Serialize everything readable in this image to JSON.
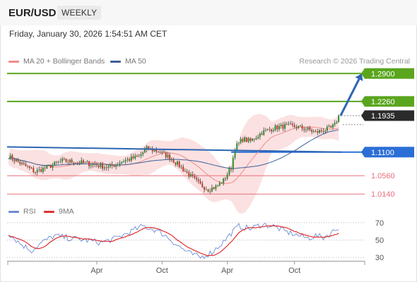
{
  "header": {
    "symbol": "EUR/USD",
    "timeframe": "WEEKLY"
  },
  "datetime": "Friday, January 30, 2026 1:54:51 AM CET",
  "legend": {
    "ma20": "MA 20 + Bollinger Bands",
    "ma50": "MA 50",
    "copyright": "Research © 2026 Trading Central",
    "rsi": "RSI",
    "rsi_ma": "9MA"
  },
  "colors": {
    "resistance": "#5aa51e",
    "support": "#e8707a",
    "pivot": "#2b6fd6",
    "current": "#2b2b2b",
    "ma20": "#f28b8b",
    "ma50": "#3d5f9a",
    "bands": "#fbe1e1",
    "up": "#2e8b2e",
    "down": "#c0392b",
    "rsi": "#6b8cd6",
    "rsi_ma": "#e03030",
    "arrow": "#2d65b4"
  },
  "chart_data": [
    {
      "type": "candlestick",
      "ylim": [
        0.995,
        1.305
      ],
      "x_ticks": [
        "Apr",
        "Oct",
        "Apr",
        "Oct"
      ],
      "levels": [
        {
          "label": "1.2900",
          "value": 1.29,
          "kind": "resistance"
        },
        {
          "label": "1.2260",
          "value": 1.226,
          "kind": "resistance"
        },
        {
          "label": "1.1935",
          "value": 1.1935,
          "kind": "current"
        },
        {
          "label": "1.1100",
          "value": 1.11,
          "kind": "pivot"
        },
        {
          "label": "1.0560",
          "value": 1.056,
          "kind": "support"
        },
        {
          "label": "1.0140",
          "value": 1.014,
          "kind": "support"
        }
      ],
      "close_anchors": [
        [
          0,
          1.1
        ],
        [
          8,
          1.08
        ],
        [
          14,
          1.065
        ],
        [
          20,
          1.075
        ],
        [
          28,
          1.09
        ],
        [
          36,
          1.087
        ],
        [
          44,
          1.082
        ],
        [
          52,
          1.075
        ],
        [
          60,
          1.09
        ],
        [
          68,
          1.1
        ],
        [
          72,
          1.118
        ],
        [
          78,
          1.112
        ],
        [
          84,
          1.098
        ],
        [
          90,
          1.075
        ],
        [
          96,
          1.05
        ],
        [
          100,
          1.035
        ],
        [
          104,
          1.025
        ],
        [
          108,
          1.03
        ],
        [
          112,
          1.045
        ],
        [
          116,
          1.075
        ],
        [
          118,
          1.12
        ],
        [
          122,
          1.14
        ],
        [
          126,
          1.135
        ],
        [
          132,
          1.155
        ],
        [
          138,
          1.165
        ],
        [
          144,
          1.17
        ],
        [
          150,
          1.168
        ],
        [
          156,
          1.162
        ],
        [
          160,
          1.155
        ],
        [
          164,
          1.16
        ],
        [
          168,
          1.165
        ],
        [
          170,
          1.172
        ],
        [
          172,
          1.1935
        ]
      ],
      "trendline": {
        "from": [
          0,
          1.122
        ],
        "to": [
          172,
          1.11
        ]
      },
      "projection": {
        "from": [
          173,
          1.1935
        ],
        "to": [
          186,
          1.29
        ]
      }
    },
    {
      "type": "line",
      "name": "RSI",
      "ylim": [
        22,
        78
      ],
      "y_ticks": [
        70,
        50,
        30
      ],
      "rsi_anchors": [
        [
          0,
          58
        ],
        [
          6,
          46
        ],
        [
          12,
          38
        ],
        [
          18,
          48
        ],
        [
          24,
          55
        ],
        [
          32,
          52
        ],
        [
          40,
          50
        ],
        [
          48,
          47
        ],
        [
          56,
          52
        ],
        [
          64,
          60
        ],
        [
          70,
          66
        ],
        [
          76,
          62
        ],
        [
          82,
          55
        ],
        [
          88,
          44
        ],
        [
          94,
          35
        ],
        [
          100,
          30
        ],
        [
          106,
          36
        ],
        [
          112,
          48
        ],
        [
          116,
          58
        ],
        [
          120,
          66
        ],
        [
          126,
          63
        ],
        [
          132,
          68
        ],
        [
          138,
          66
        ],
        [
          144,
          60
        ],
        [
          150,
          56
        ],
        [
          156,
          52
        ],
        [
          160,
          55
        ],
        [
          164,
          53
        ],
        [
          168,
          58
        ],
        [
          172,
          65
        ]
      ]
    }
  ]
}
